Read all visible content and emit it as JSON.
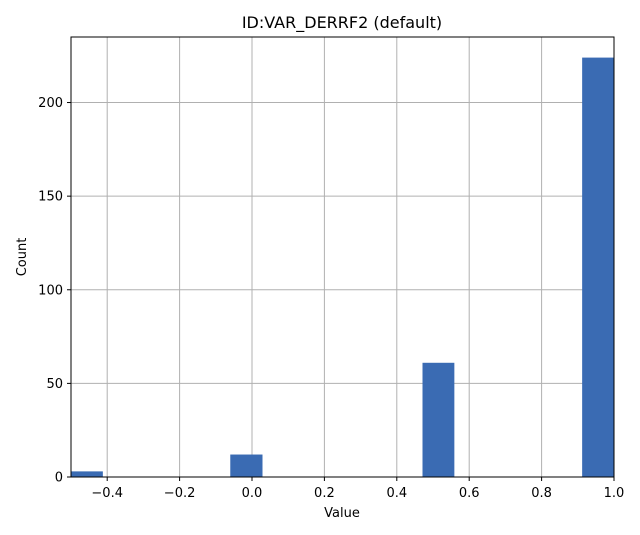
{
  "chart_data": {
    "type": "bar",
    "title": "ID:VAR_DERRF2 (default)",
    "xlabel": "Value",
    "ylabel": "Count",
    "xlim": [
      -0.5,
      1.0
    ],
    "ylim": [
      0,
      235
    ],
    "grid": true,
    "bar_color": "#3a6bb3",
    "bin_width": 0.088,
    "bins": [
      {
        "x_start": -0.5,
        "x_end": -0.412,
        "count": 3
      },
      {
        "x_start": -0.06,
        "x_end": 0.029,
        "count": 12
      },
      {
        "x_start": 0.471,
        "x_end": 0.559,
        "count": 61
      },
      {
        "x_start": 0.912,
        "x_end": 1.0,
        "count": 224
      }
    ],
    "xticks": [
      -0.4,
      -0.2,
      0.0,
      0.2,
      0.4,
      0.6,
      0.8,
      1.0
    ],
    "xtick_labels": [
      "−0.4",
      "−0.2",
      "0.0",
      "0.2",
      "0.4",
      "0.6",
      "0.8",
      "1.0"
    ],
    "yticks": [
      0,
      50,
      100,
      150,
      200
    ],
    "ytick_labels": [
      "0",
      "50",
      "100",
      "150",
      "200"
    ]
  }
}
